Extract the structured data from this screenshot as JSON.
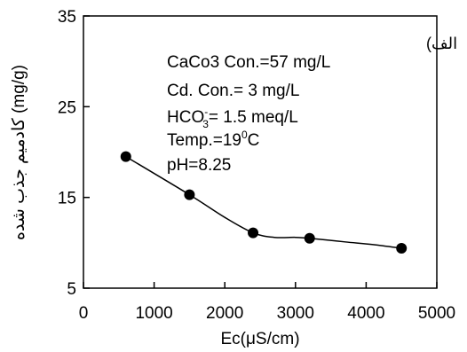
{
  "chart_data": {
    "type": "line",
    "title": "",
    "xlabel_parts": {
      "prefix": "Ec(",
      "mu": "μ",
      "suffix": "S/cm)"
    },
    "ylabel": "(mg/g) کادمیم جذب شده",
    "xlim": [
      0,
      5000
    ],
    "ylim": [
      5,
      35
    ],
    "x_ticks": [
      0,
      1000,
      2000,
      3000,
      4000,
      5000
    ],
    "y_ticks": [
      5,
      15,
      25,
      35
    ],
    "grid": false,
    "panel_label": "الف)",
    "annotations": {
      "line1": "CaCo3 Con.=57 mg/L",
      "line2": "Cd. Con.= 3 mg/L",
      "line3": {
        "base": "HCO",
        "sup": "-",
        "sub": "3",
        "rest": "= 1.5 meq/L"
      },
      "line4": {
        "base": "Temp.=19",
        "sup": "0",
        "rest": "C"
      },
      "line5": "pH=8.25"
    },
    "series": [
      {
        "marker": "circle",
        "color": "#000000",
        "points": [
          {
            "x": 600,
            "y": 19.5
          },
          {
            "x": 1500,
            "y": 15.3
          },
          {
            "x": 2400,
            "y": 11.1
          },
          {
            "x": 3200,
            "y": 10.5
          },
          {
            "x": 4500,
            "y": 9.4
          }
        ],
        "curve": [
          {
            "x": 600,
            "y": 19.5
          },
          {
            "x": 1500,
            "y": 15.3
          },
          {
            "x": 2000,
            "y": 12.8
          },
          {
            "x": 2400,
            "y": 11.1
          },
          {
            "x": 2700,
            "y": 10.6
          },
          {
            "x": 3000,
            "y": 10.6
          },
          {
            "x": 3200,
            "y": 10.5
          },
          {
            "x": 3700,
            "y": 10.1
          },
          {
            "x": 4100,
            "y": 9.8
          },
          {
            "x": 4500,
            "y": 9.4
          }
        ]
      }
    ]
  }
}
